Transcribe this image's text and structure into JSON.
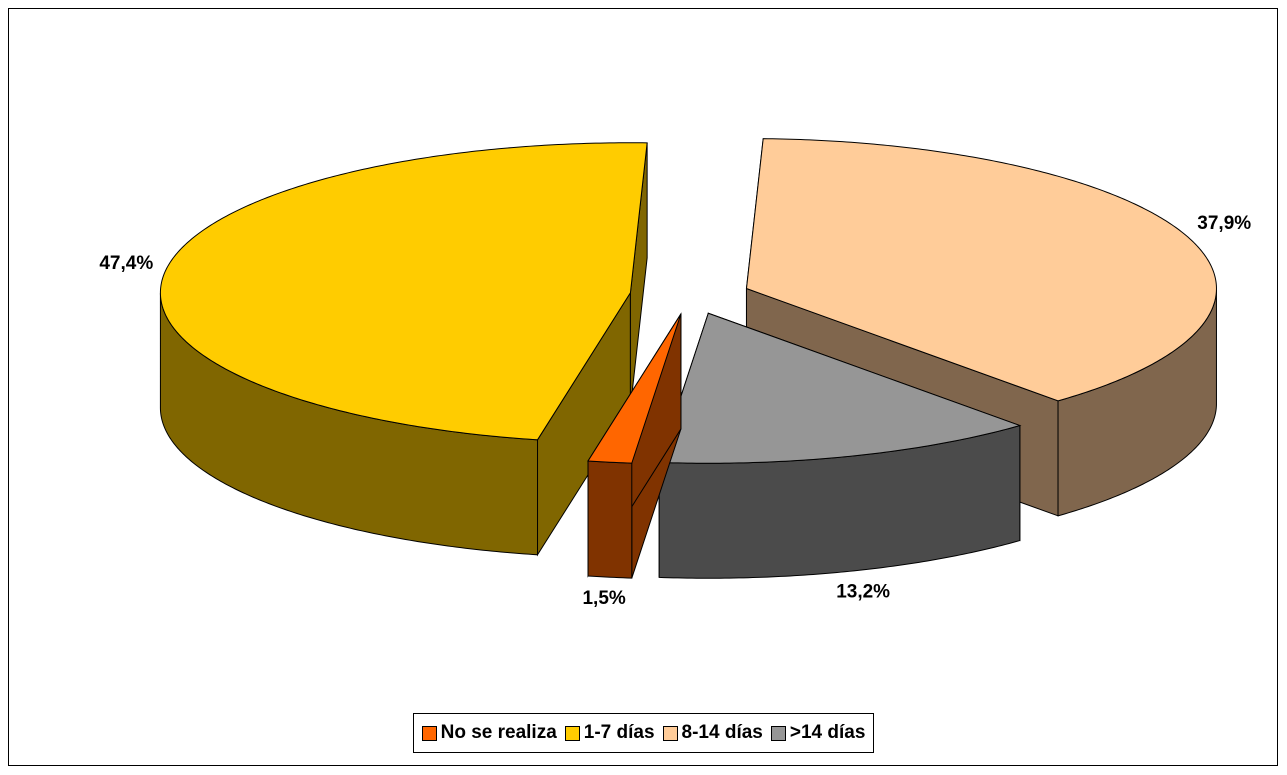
{
  "chart_data": {
    "type": "pie",
    "categories": [
      "No se realiza",
      "1-7 días",
      "8-14 días",
      ">14 días"
    ],
    "values": [
      1.5,
      47.4,
      37.9,
      13.2
    ],
    "value_labels": [
      "1,5%",
      "47,4%",
      "37,9%",
      "13,2%"
    ],
    "colors": [
      "#FF6600",
      "#FFCC00",
      "#FFCC99",
      "#969696"
    ],
    "legend": "bottom"
  }
}
